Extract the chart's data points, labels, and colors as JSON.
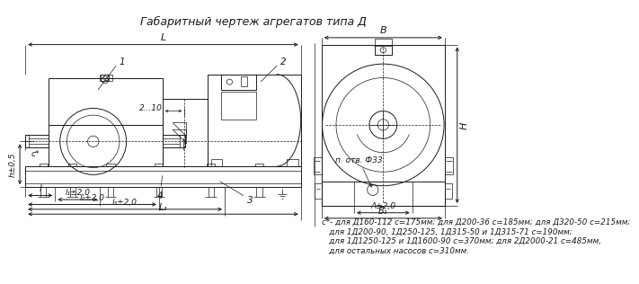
{
  "title": "Габаритный чертеж агрегатов типа Д",
  "line_color": "#1a1a1a",
  "bg_color": "#ffffff",
  "note_lines": [
    "с*- для Д160-112 с=175мм; для Д200-36 с=185мм; для Д320-50 с=215мм;",
    "   для 1Д200-90, 1Д250-125, 1Д315-50 и 1Д315-71 с=190мм;",
    "   для 1Д1250-125 и 1Д1600-90 с=370мм; для 2Д2000-21 с=485мм,",
    "   для остальных насосов с=310мм."
  ]
}
